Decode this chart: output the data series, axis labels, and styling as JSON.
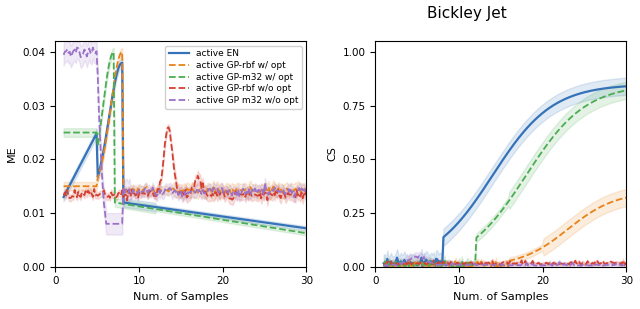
{
  "title": "Bickley Jet",
  "title_fontsize": 11,
  "xlabel": "Num. of Samples",
  "ylabel_left": "ME",
  "ylabel_right": "CS",
  "xlim": [
    0,
    30
  ],
  "ylim_left": [
    0.0,
    0.042
  ],
  "ylim_right": [
    0.0,
    1.05
  ],
  "yticks_left": [
    0.0,
    0.01,
    0.02,
    0.03,
    0.04
  ],
  "yticks_right": [
    0.0,
    0.25,
    0.5,
    0.75,
    1.0
  ],
  "xticks": [
    0,
    10,
    20,
    30
  ],
  "series": [
    {
      "label": "active EN",
      "color": "#3572b8",
      "linestyle": "solid",
      "linewidth": 1.6,
      "alpha_fill": 0.15
    },
    {
      "label": "active GP-rbf w/ opt",
      "color": "#e8821a",
      "linestyle": "dashed",
      "linewidth": 1.3,
      "alpha_fill": 0.15
    },
    {
      "label": "active GP-m32 w/ opt",
      "color": "#4aad52",
      "linestyle": "dashed",
      "linewidth": 1.3,
      "alpha_fill": 0.15
    },
    {
      "label": "active GP-rbf w/o opt",
      "color": "#d44133",
      "linestyle": "dashed",
      "linewidth": 1.3,
      "alpha_fill": 0.15
    },
    {
      "label": "active GP m32 w/o opt",
      "color": "#9b72c8",
      "linestyle": "dashed",
      "linewidth": 1.3,
      "alpha_fill": 0.15
    }
  ],
  "legend_fontsize": 6.5,
  "axis_fontsize": 8,
  "tick_fontsize": 7.5
}
